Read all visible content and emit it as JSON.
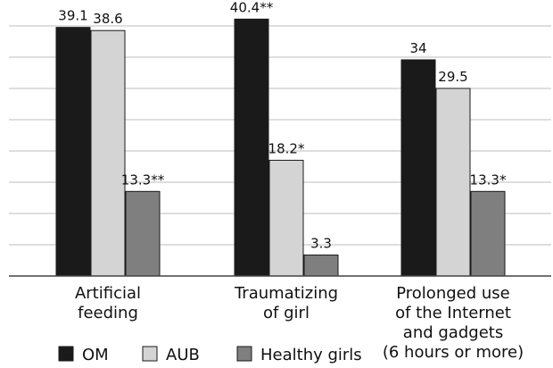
{
  "chart_data": {
    "type": "bar",
    "title": "",
    "xlabel": "",
    "ylabel": "",
    "ylim": [
      0,
      42
    ],
    "grid": true,
    "legend_position": "bottom",
    "categories": [
      [
        "Artificial",
        "feeding"
      ],
      [
        "Traumatizing",
        "of girl"
      ],
      [
        "Prolonged use",
        "of the Internet",
        "and gadgets",
        "(6 hours or more)"
      ]
    ],
    "series": [
      {
        "name": "OM",
        "color": "#1a1a1a",
        "values": [
          39.1,
          40.4,
          34
        ],
        "labels": [
          "39.1",
          "40.4**",
          "34"
        ]
      },
      {
        "name": "AUB",
        "color": "#d4d4d4",
        "values": [
          38.6,
          18.2,
          29.5
        ],
        "labels": [
          "38.6",
          "18.2*",
          "29.5"
        ]
      },
      {
        "name": "Healthy girls",
        "color": "#7f7f7f",
        "values": [
          13.3,
          3.3,
          13.3
        ],
        "labels": [
          "13.3**",
          "3.3",
          "13.3*"
        ]
      }
    ]
  }
}
